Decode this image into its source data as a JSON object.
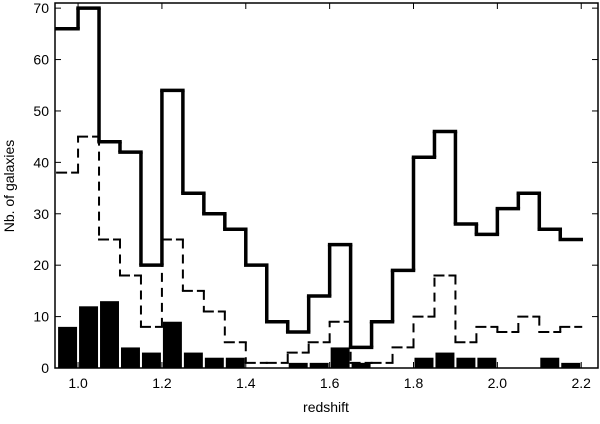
{
  "chart_data": {
    "type": "histogram",
    "xlabel": "redshift",
    "ylabel": "Nb. of galaxies",
    "bins": [
      0.95,
      1.0,
      1.05,
      1.1,
      1.15,
      1.2,
      1.25,
      1.3,
      1.35,
      1.4,
      1.45,
      1.5,
      1.55,
      1.6,
      1.65,
      1.7,
      1.75,
      1.8,
      1.85,
      1.9,
      1.95,
      2.0,
      2.05,
      2.1,
      2.15,
      2.2
    ],
    "series": [
      {
        "style": "solid",
        "color": "#000000",
        "values": [
          66,
          70,
          44,
          42,
          20,
          54,
          34,
          30,
          27,
          20,
          9,
          7,
          14,
          24,
          4,
          9,
          19,
          41,
          46,
          28,
          26,
          31,
          34,
          27,
          25
        ]
      },
      {
        "style": "dashed",
        "color": "#000000",
        "values": [
          38,
          45,
          25,
          18,
          8,
          25,
          15,
          11,
          5,
          1,
          1,
          3,
          5,
          9,
          1,
          1,
          4,
          10,
          18,
          5,
          8,
          7,
          10,
          7,
          8
        ]
      },
      {
        "style": "filled",
        "color": "#000000",
        "values": [
          8,
          12,
          13,
          4,
          3,
          9,
          3,
          2,
          2,
          0,
          0,
          1,
          1,
          4,
          1,
          0,
          0,
          2,
          3,
          2,
          2,
          0,
          0,
          2,
          1
        ]
      }
    ],
    "xlim": [
      0.945,
      2.24
    ],
    "ylim": [
      0,
      71
    ],
    "xticks": [
      {
        "value": 1,
        "label": "1.0"
      },
      1.2,
      1.4,
      1.6,
      1.8,
      {
        "value": 2,
        "label": "2.0"
      },
      2.2
    ],
    "yticks": [
      0,
      10,
      20,
      30,
      40,
      50,
      60,
      70
    ]
  }
}
